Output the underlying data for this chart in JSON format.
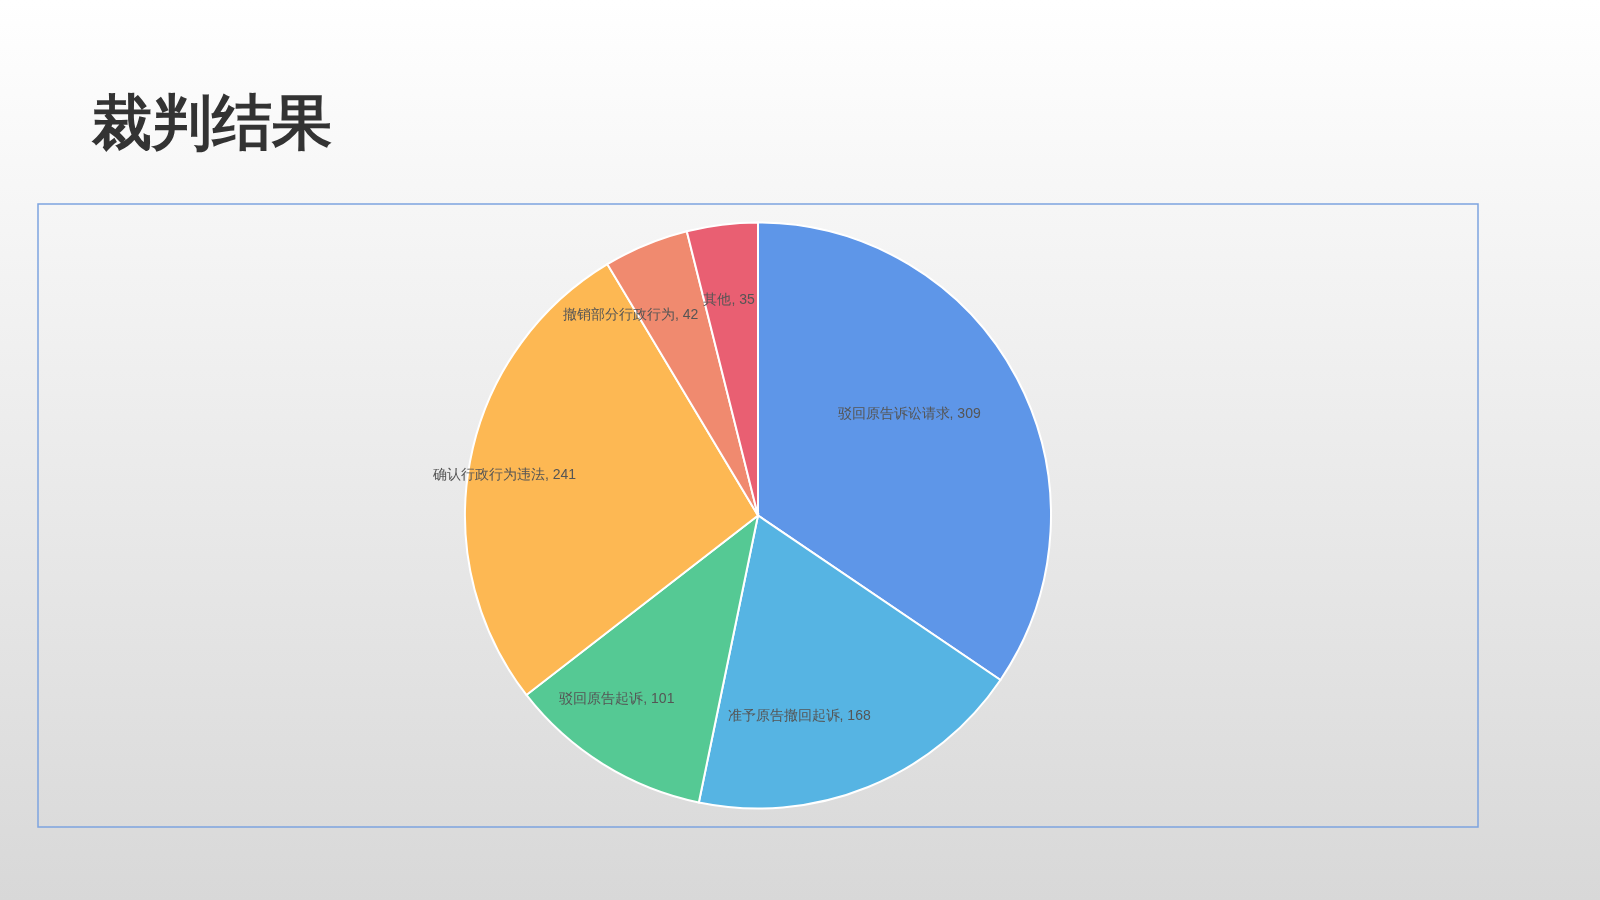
{
  "chart_data": {
    "type": "pie",
    "title": "裁判结果",
    "categories": [
      "驳回原告诉讼请求",
      "准予原告撤回起诉",
      "驳回原告起诉",
      "确认行政行为违法",
      "撤销部分行政行为",
      "其他"
    ],
    "values": [
      309,
      168,
      101,
      241,
      42,
      35
    ],
    "value_labels": [
      ", 309",
      ", 168",
      ", 101",
      ", 241",
      ", 42",
      ", 35"
    ],
    "colors": [
      "#5e96e8",
      "#56b4e3",
      "#55c994",
      "#fdb853",
      "#f08a6f",
      "#e95f72"
    ],
    "legend": false
  }
}
